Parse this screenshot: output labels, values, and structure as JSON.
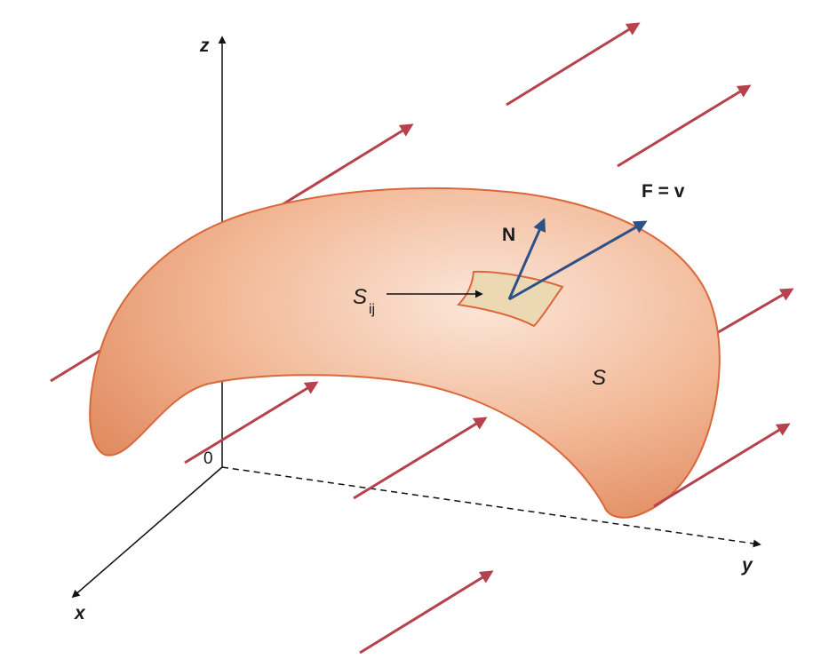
{
  "axes": {
    "z_label": "z",
    "y_label": "y",
    "x_label": "x",
    "origin_label": "0"
  },
  "labels": {
    "normal": "N",
    "field": "F = v",
    "patch_base": "S",
    "patch_sub": "ij",
    "surface": "S"
  },
  "colors": {
    "field_arrow": "#b5424c",
    "normal_arrow": "#2c5189",
    "surface_fill": "#e8956d",
    "surface_stroke": "#d9683c",
    "patch_fill": "#ecd9b3",
    "axis": "#111111"
  }
}
